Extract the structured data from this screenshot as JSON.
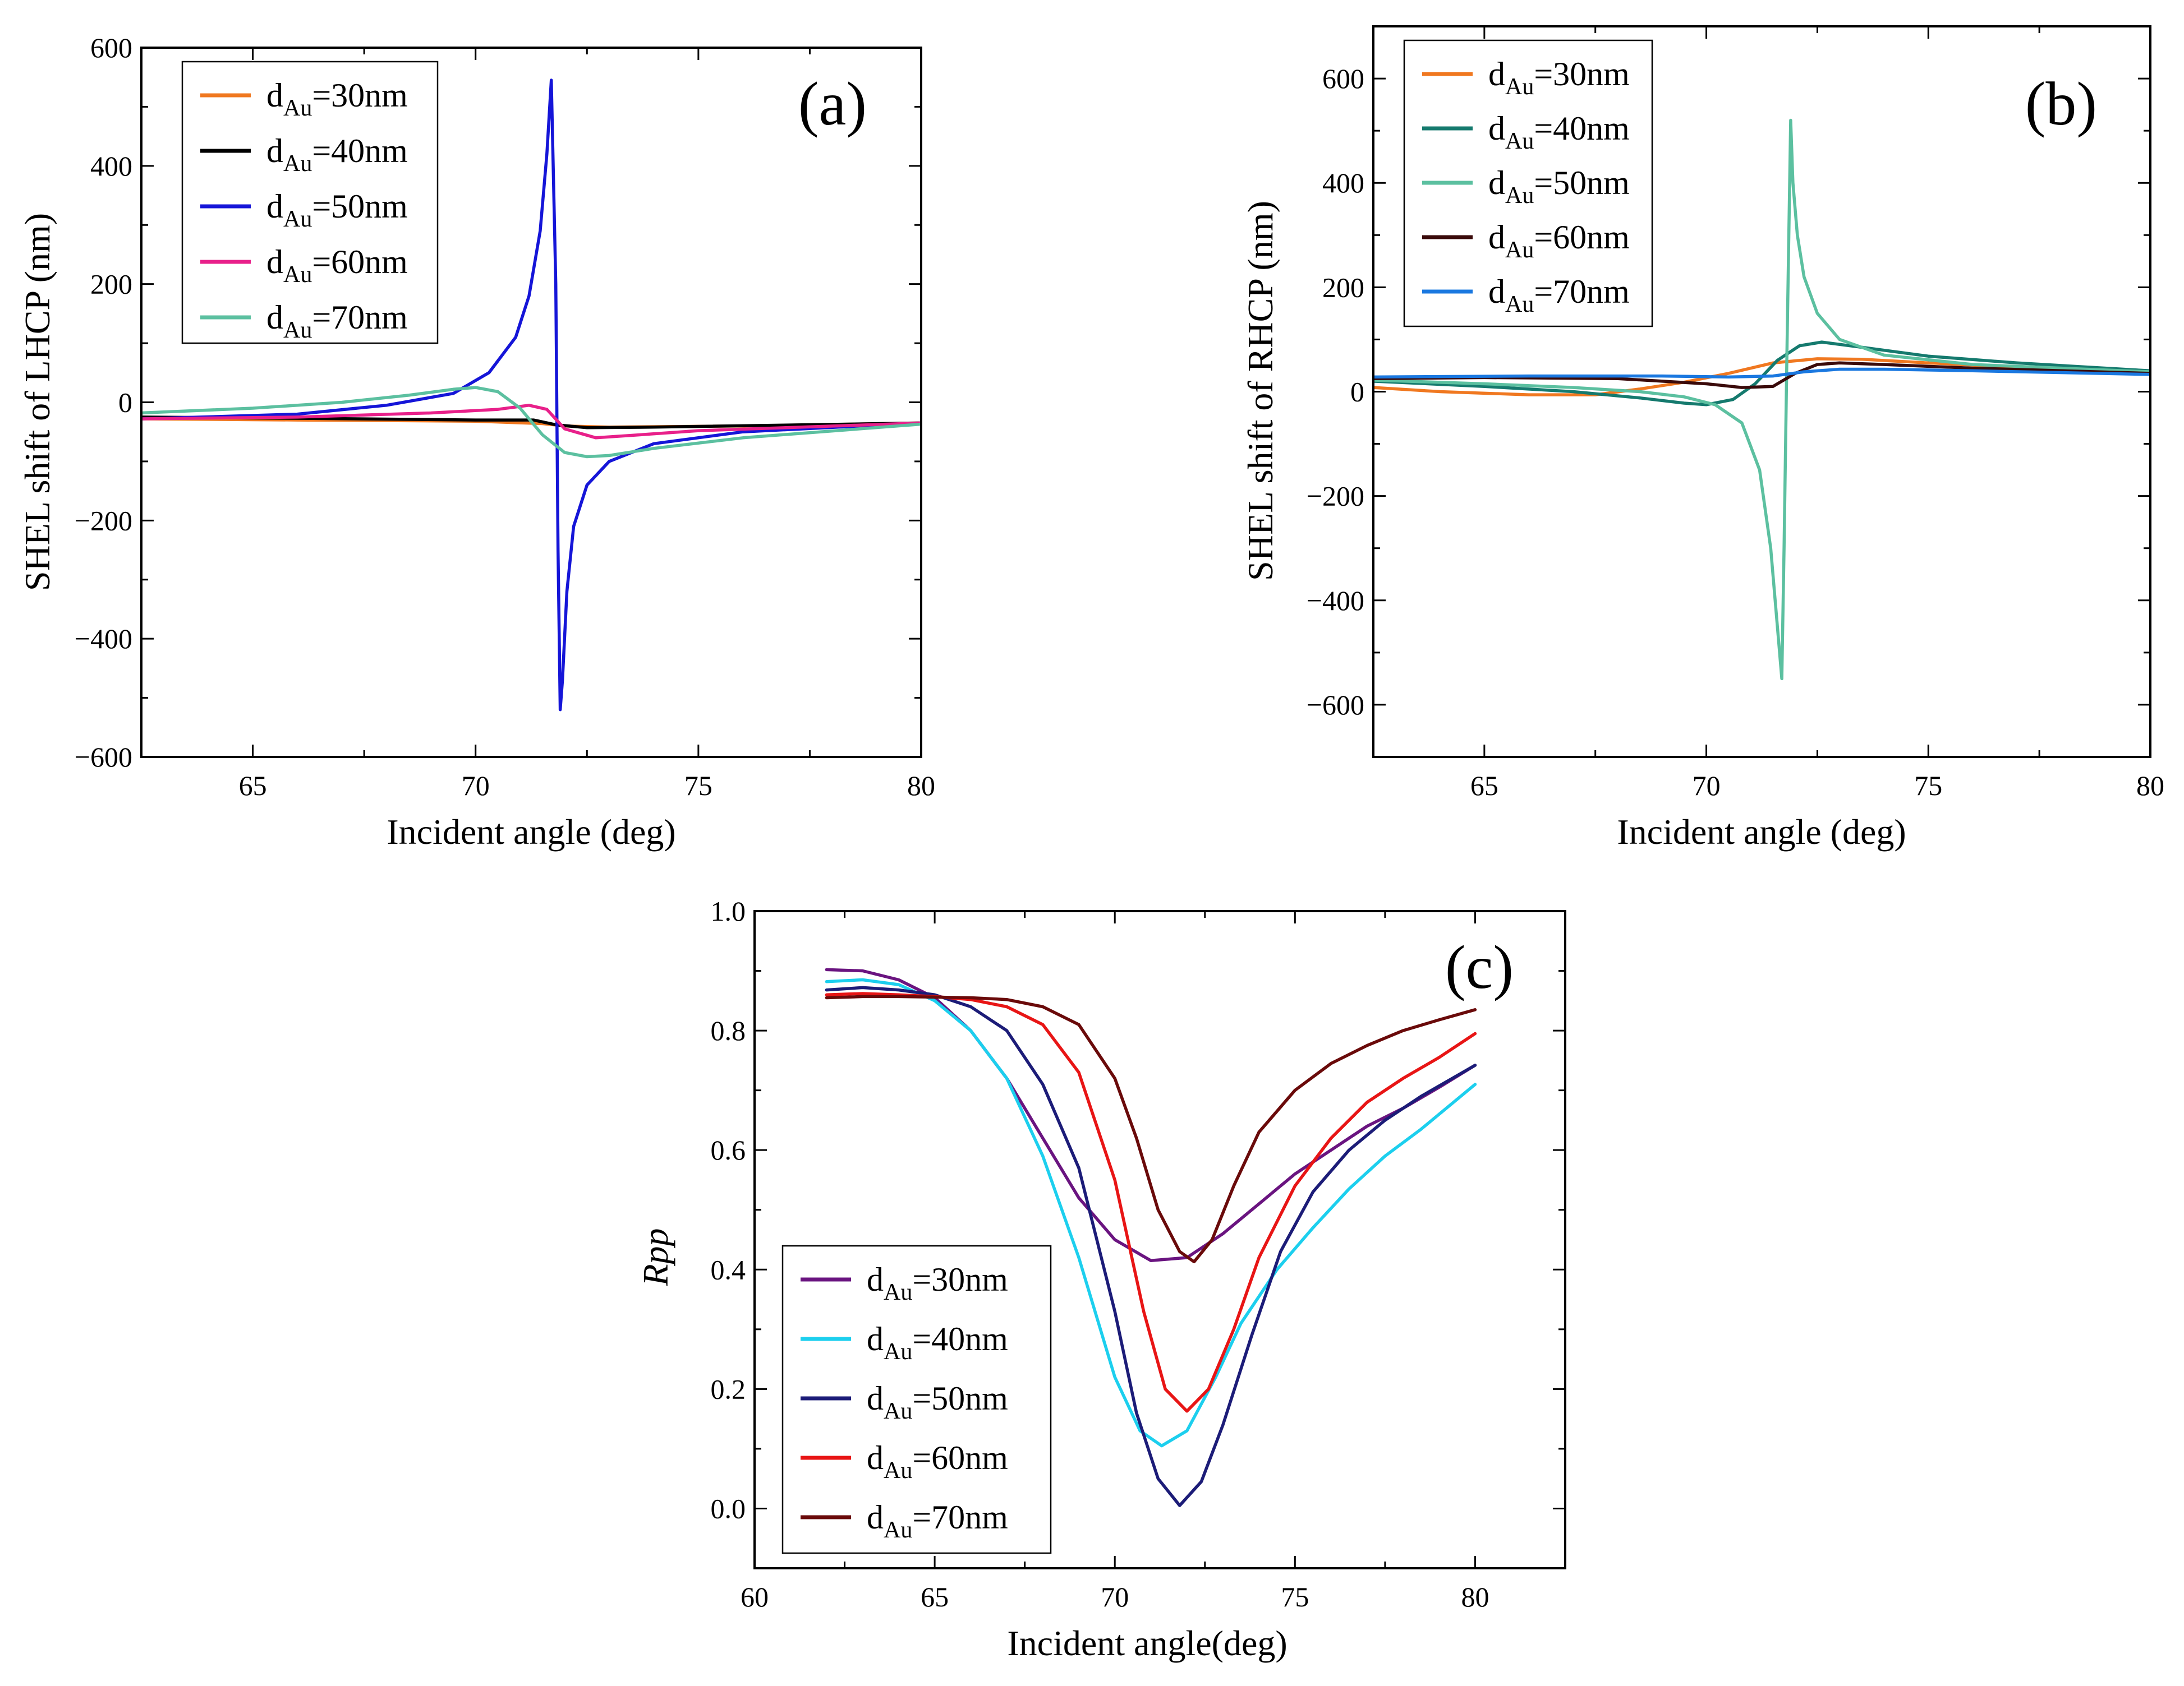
{
  "chart_data": [
    {
      "panel": "a",
      "type": "line",
      "panel_label": "(a)",
      "xlabel": "Incident angle (deg)",
      "ylabel": "SHEL shift of  LHCP (nm)",
      "xlim": [
        62.5,
        80
      ],
      "ylim": [
        -600,
        600
      ],
      "xticks": [
        65,
        70,
        75,
        80
      ],
      "yticks": [
        -600,
        -400,
        -200,
        0,
        200,
        400,
        600
      ],
      "xtick_labels": [
        "65",
        "70",
        "75",
        "80"
      ],
      "ytick_labels": [
        "−600",
        "−400",
        "−200",
        "0",
        "200",
        "400",
        "600"
      ],
      "grid": false,
      "legend_position": "top-left",
      "series": [
        {
          "name_main": "d",
          "name_sub": "Au",
          "name_tail": "=30nm",
          "color": "#f07820",
          "x": [
            62.5,
            66,
            70,
            71.5,
            72,
            73,
            76,
            80
          ],
          "y": [
            -28,
            -30,
            -32,
            -36,
            -40,
            -42,
            -40,
            -35
          ]
        },
        {
          "name_main": "d",
          "name_sub": "Au",
          "name_tail": "=40nm",
          "color": "#000000",
          "x": [
            62.5,
            66,
            70,
            71.3,
            71.8,
            72.5,
            74,
            80
          ],
          "y": [
            -25,
            -27,
            -30,
            -30,
            -38,
            -43,
            -42,
            -35
          ]
        },
        {
          "name_main": "d",
          "name_sub": "Au",
          "name_tail": "=50nm",
          "color": "#1515d8",
          "x": [
            62.5,
            66,
            68,
            69.5,
            70.3,
            70.9,
            71.2,
            71.45,
            71.6,
            71.7,
            71.8,
            71.85,
            71.9,
            71.95,
            72.05,
            72.2,
            72.5,
            73,
            74,
            76,
            80
          ],
          "y": [
            -28,
            -20,
            -5,
            15,
            50,
            110,
            180,
            290,
            420,
            545,
            200,
            -250,
            -520,
            -470,
            -320,
            -210,
            -140,
            -100,
            -70,
            -50,
            -35
          ]
        },
        {
          "name_main": "d",
          "name_sub": "Au",
          "name_tail": "=60nm",
          "color": "#e8208a",
          "x": [
            62.5,
            66,
            69,
            70.5,
            71.2,
            71.6,
            72,
            72.7,
            73.5,
            75,
            80
          ],
          "y": [
            -28,
            -25,
            -18,
            -12,
            -5,
            -12,
            -45,
            -60,
            -56,
            -48,
            -35
          ]
        },
        {
          "name_main": "d",
          "name_sub": "Au",
          "name_tail": "=70nm",
          "color": "#5cc0a0",
          "x": [
            62.5,
            65,
            67,
            68.5,
            69.5,
            70,
            70.5,
            71,
            71.5,
            72,
            72.5,
            73,
            74,
            76,
            80
          ],
          "y": [
            -18,
            -10,
            0,
            12,
            22,
            25,
            18,
            -10,
            -55,
            -85,
            -92,
            -90,
            -78,
            -60,
            -37
          ]
        }
      ]
    },
    {
      "panel": "b",
      "type": "line",
      "panel_label": "(b)",
      "xlabel": "Incident angle (deg)",
      "ylabel": "SHEL shift of  RHCP (nm)",
      "xlim": [
        62.5,
        80
      ],
      "ylim": [
        -700,
        700
      ],
      "xticks": [
        65,
        70,
        75,
        80
      ],
      "yticks": [
        -600,
        -400,
        -200,
        0,
        200,
        400,
        600
      ],
      "xtick_labels": [
        "65",
        "70",
        "75",
        "80"
      ],
      "ytick_labels": [
        "−600",
        "−400",
        "−200",
        "0",
        "200",
        "400",
        "600"
      ],
      "grid": false,
      "legend_position": "top-left",
      "series": [
        {
          "name_main": "d",
          "name_sub": "Au",
          "name_tail": "=30nm",
          "color": "#f07820",
          "x": [
            62.5,
            64,
            66,
            67.5,
            68.5,
            69.5,
            70.5,
            71.5,
            72.5,
            73.5,
            75,
            77,
            80
          ],
          "y": [
            8,
            0,
            -6,
            -6,
            5,
            18,
            35,
            55,
            63,
            62,
            55,
            47,
            38
          ]
        },
        {
          "name_main": "d",
          "name_sub": "Au",
          "name_tail": "=40nm",
          "color": "#157a6e",
          "x": [
            62.5,
            65,
            67,
            68.5,
            69.5,
            70,
            70.6,
            71.1,
            71.6,
            72.1,
            72.6,
            73.5,
            75,
            77,
            80
          ],
          "y": [
            20,
            10,
            0,
            -12,
            -22,
            -25,
            -15,
            15,
            60,
            88,
            95,
            85,
            68,
            55,
            40
          ]
        },
        {
          "name_main": "d",
          "name_sub": "Au",
          "name_tail": "=50nm",
          "color": "#5cc0a0",
          "x": [
            62.5,
            65,
            67,
            68.5,
            69.5,
            70.2,
            70.8,
            71.2,
            71.45,
            71.6,
            71.7,
            71.75,
            71.82,
            71.9,
            71.95,
            72.05,
            72.2,
            72.5,
            73,
            74,
            76,
            80
          ],
          "y": [
            22,
            15,
            8,
            0,
            -10,
            -25,
            -60,
            -150,
            -300,
            -450,
            -550,
            -300,
            100,
            520,
            400,
            300,
            220,
            150,
            100,
            70,
            52,
            38
          ]
        },
        {
          "name_main": "d",
          "name_sub": "Au",
          "name_tail": "=60nm",
          "color": "#3a0a0a",
          "x": [
            62.5,
            65,
            68,
            70,
            70.8,
            71.5,
            72,
            72.5,
            73,
            74,
            76,
            80
          ],
          "y": [
            25,
            27,
            25,
            15,
            8,
            10,
            35,
            52,
            55,
            52,
            45,
            35
          ]
        },
        {
          "name_main": "d",
          "name_sub": "Au",
          "name_tail": "=70nm",
          "color": "#1a78e0",
          "x": [
            62.5,
            66,
            69,
            70.5,
            71.5,
            72.2,
            73,
            74,
            76,
            80
          ],
          "y": [
            28,
            30,
            30,
            28,
            30,
            38,
            43,
            43,
            40,
            33
          ]
        }
      ]
    },
    {
      "panel": "c",
      "type": "line",
      "panel_label": "(c)",
      "xlabel": "Incident angle(deg)",
      "ylabel": "Rpp",
      "xlim": [
        60,
        82.5
      ],
      "ylim": [
        -0.1,
        1.0
      ],
      "xticks": [
        60,
        65,
        70,
        75,
        80
      ],
      "yticks": [
        0.0,
        0.2,
        0.4,
        0.6,
        0.8,
        1.0
      ],
      "xtick_labels": [
        "60",
        "65",
        "70",
        "75",
        "80"
      ],
      "ytick_labels": [
        "0.0",
        "0.2",
        "0.4",
        "0.6",
        "0.8",
        "1.0"
      ],
      "grid": false,
      "legend_position": "bottom-left",
      "series": [
        {
          "name_main": "d",
          "name_sub": "Au",
          "name_tail": "=30nm",
          "color": "#6a1480",
          "x": [
            62,
            63,
            64,
            65,
            66,
            67,
            68,
            69,
            70,
            71,
            72,
            73,
            74,
            75,
            76,
            77,
            78,
            79,
            80
          ],
          "y": [
            0.902,
            0.9,
            0.885,
            0.855,
            0.8,
            0.72,
            0.62,
            0.52,
            0.45,
            0.415,
            0.42,
            0.46,
            0.51,
            0.56,
            0.6,
            0.64,
            0.67,
            0.705,
            0.742
          ]
        },
        {
          "name_main": "d",
          "name_sub": "Au",
          "name_tail": "=40nm",
          "color": "#1ccfee",
          "x": [
            62,
            63,
            64,
            65,
            66,
            67,
            68,
            69,
            70,
            70.7,
            71.3,
            72,
            72.8,
            73.5,
            74.5,
            75.5,
            76.5,
            77.5,
            78.5,
            80
          ],
          "y": [
            0.882,
            0.885,
            0.877,
            0.85,
            0.8,
            0.72,
            0.59,
            0.42,
            0.22,
            0.13,
            0.105,
            0.13,
            0.22,
            0.31,
            0.4,
            0.47,
            0.535,
            0.59,
            0.635,
            0.71
          ]
        },
        {
          "name_main": "d",
          "name_sub": "Au",
          "name_tail": "=50nm",
          "color": "#1c1c78",
          "x": [
            62,
            63,
            64,
            65,
            66,
            67,
            68,
            69,
            70,
            70.6,
            71.2,
            71.8,
            72.4,
            73,
            73.8,
            74.6,
            75.5,
            76.5,
            77.5,
            78.5,
            80
          ],
          "y": [
            0.868,
            0.872,
            0.868,
            0.86,
            0.84,
            0.8,
            0.71,
            0.57,
            0.33,
            0.16,
            0.05,
            0.005,
            0.045,
            0.14,
            0.29,
            0.43,
            0.53,
            0.6,
            0.65,
            0.69,
            0.742
          ]
        },
        {
          "name_main": "d",
          "name_sub": "Au",
          "name_tail": "=60nm",
          "color": "#e81515",
          "x": [
            62,
            63,
            64,
            65,
            66,
            67,
            68,
            69,
            70,
            70.8,
            71.4,
            72,
            72.6,
            73.3,
            74,
            75,
            76,
            77,
            78,
            79,
            80
          ],
          "y": [
            0.86,
            0.862,
            0.86,
            0.857,
            0.852,
            0.84,
            0.81,
            0.73,
            0.55,
            0.33,
            0.2,
            0.163,
            0.2,
            0.3,
            0.42,
            0.54,
            0.62,
            0.68,
            0.72,
            0.755,
            0.795
          ]
        },
        {
          "name_main": "d",
          "name_sub": "Au",
          "name_tail": "=70nm",
          "color": "#6a0a0a",
          "x": [
            62,
            63,
            64,
            65,
            66,
            67,
            68,
            69,
            70,
            70.6,
            71.2,
            71.8,
            72.2,
            72.7,
            73.3,
            74,
            75,
            76,
            77,
            78,
            79,
            80
          ],
          "y": [
            0.855,
            0.857,
            0.857,
            0.856,
            0.855,
            0.852,
            0.84,
            0.81,
            0.72,
            0.62,
            0.5,
            0.43,
            0.413,
            0.45,
            0.54,
            0.63,
            0.7,
            0.745,
            0.775,
            0.8,
            0.818,
            0.835
          ]
        }
      ]
    }
  ]
}
